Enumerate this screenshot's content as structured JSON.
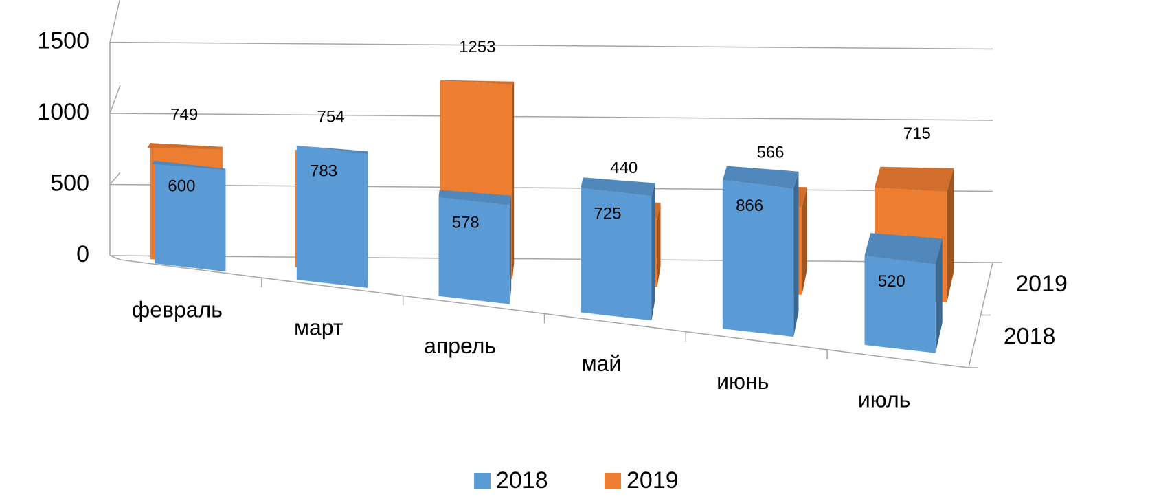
{
  "chart_data": {
    "type": "bar3d",
    "categories": [
      "февраль",
      "март",
      "апрель",
      "май",
      "июнь",
      "июль"
    ],
    "series": [
      {
        "name": "2018",
        "color": "#5b9bd5",
        "values": [
          600,
          783,
          578,
          725,
          866,
          520
        ]
      },
      {
        "name": "2019",
        "color": "#ed7d31",
        "values": [
          749,
          754,
          1253,
          440,
          566,
          715
        ]
      }
    ],
    "ylim": [
      0,
      1500
    ],
    "yticks": [
      0,
      500,
      1000,
      1500
    ],
    "grid": true,
    "legend": "bottom"
  }
}
